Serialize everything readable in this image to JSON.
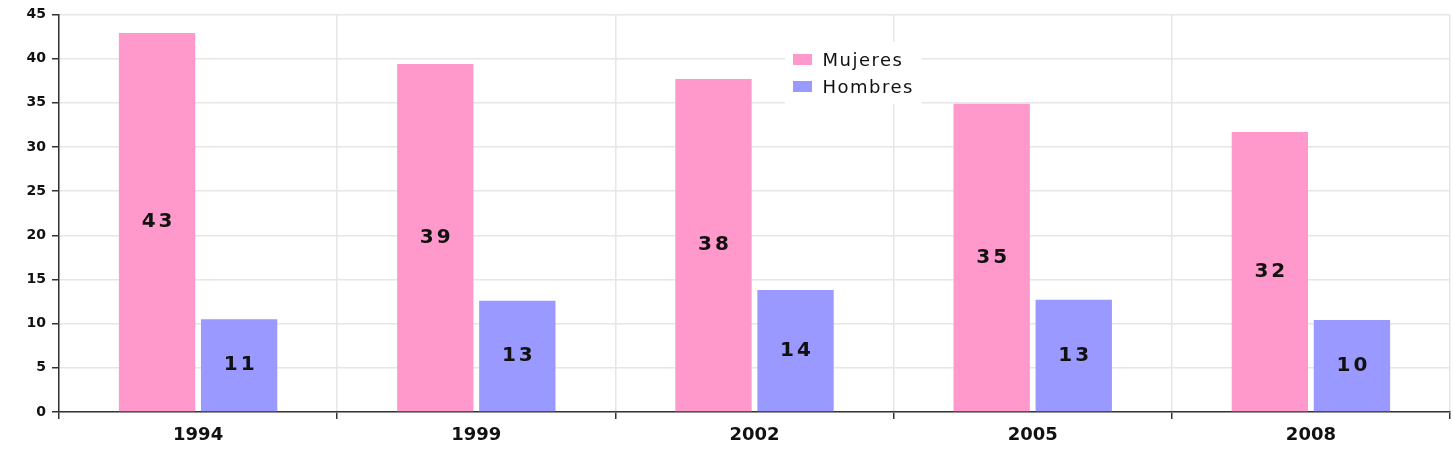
{
  "chart_data": {
    "type": "bar",
    "categories": [
      "1994",
      "1999",
      "2002",
      "2005",
      "2008"
    ],
    "series": [
      {
        "name": "Mujeres",
        "color": "#ff99cc",
        "values": [
          42.9,
          39.4,
          37.7,
          34.9,
          31.7
        ],
        "value_labels": [
          "43",
          "39",
          "38",
          "35",
          "32"
        ]
      },
      {
        "name": "Hombres",
        "color": "#9999ff",
        "values": [
          10.5,
          12.6,
          13.8,
          12.7,
          10.4
        ],
        "value_labels": [
          "11",
          "13",
          "14",
          "13",
          "10"
        ]
      }
    ],
    "ylim": [
      0,
      45
    ],
    "yticks": [
      0,
      5,
      10,
      15,
      20,
      25,
      30,
      35,
      40,
      45
    ],
    "grid": true,
    "legend": "top"
  }
}
